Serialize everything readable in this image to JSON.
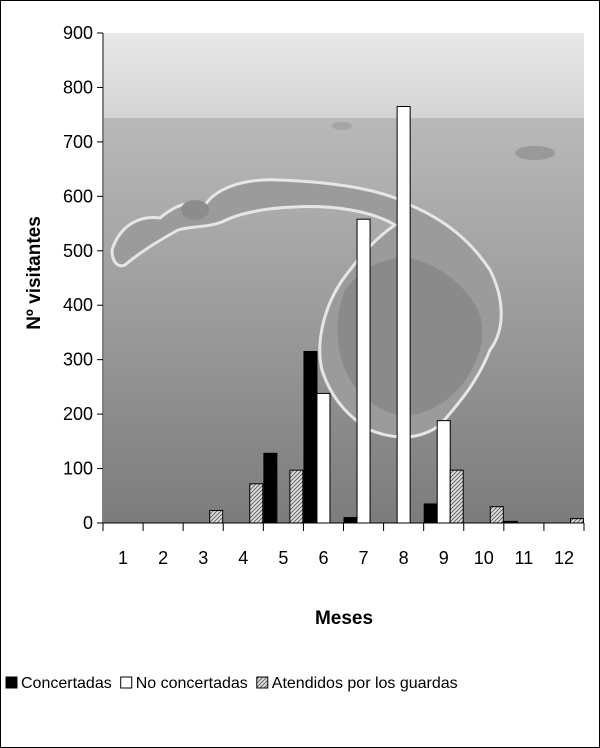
{
  "chart_data": {
    "type": "bar",
    "title": "",
    "xlabel": "Meses",
    "ylabel": "Nº visitantes",
    "ylim": [
      0,
      900
    ],
    "yticks": [
      0,
      100,
      200,
      300,
      400,
      500,
      600,
      700,
      800,
      900
    ],
    "categories": [
      "1",
      "2",
      "3",
      "4",
      "5",
      "6",
      "7",
      "8",
      "9",
      "10",
      "11",
      "12"
    ],
    "series": [
      {
        "name": "Concertadas",
        "color": "#000000",
        "pattern": "solid",
        "values": [
          0,
          0,
          0,
          0,
          128,
          315,
          10,
          0,
          35,
          0,
          3,
          0
        ]
      },
      {
        "name": "No concertadas",
        "color": "#ffffff",
        "pattern": "hollow",
        "values": [
          0,
          0,
          0,
          0,
          0,
          238,
          558,
          765,
          188,
          0,
          0,
          0
        ]
      },
      {
        "name": "Atendidos por los guardas",
        "color": "#c8c8c8",
        "pattern": "hatched",
        "values": [
          0,
          0,
          23,
          72,
          97,
          0,
          0,
          0,
          97,
          30,
          0,
          8
        ]
      }
    ],
    "grid": false,
    "legend_position": "bottom",
    "background": "aerial photograph of a rocky island in the sea"
  }
}
